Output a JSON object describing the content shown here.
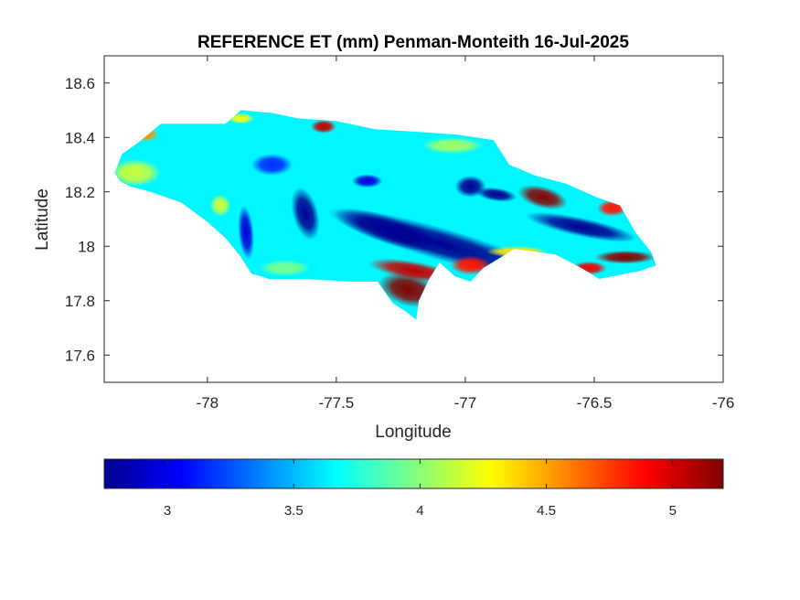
{
  "chart_data": {
    "type": "heatmap",
    "title": "REFERENCE ET (mm) Penman-Monteith 16-Jul-2025",
    "xlabel": "Longitude",
    "ylabel": "Latitude",
    "xlim": [
      -78.4,
      -76
    ],
    "ylim": [
      17.5,
      18.7
    ],
    "xticks": [
      -78,
      -77.5,
      -77,
      -76.5,
      -76
    ],
    "xtick_labels": [
      "-78",
      "-77.5",
      "-77",
      "-76.5",
      "-76"
    ],
    "yticks": [
      17.6,
      17.8,
      18,
      18.2,
      18.4,
      18.6
    ],
    "ytick_labels": [
      "17.6",
      "17.8",
      "18",
      "18.2",
      "18.4",
      "18.6"
    ],
    "colormap": "jet",
    "colorbar": {
      "location": "bottom",
      "range": [
        2.75,
        5.2
      ],
      "ticks": [
        3,
        3.5,
        4,
        4.5,
        5
      ],
      "tick_labels": [
        "3",
        "3.5",
        "4",
        "4.5",
        "5"
      ]
    },
    "region_outline": [
      [
        -78.36,
        18.27
      ],
      [
        -78.33,
        18.34
      ],
      [
        -78.27,
        18.38
      ],
      [
        -78.18,
        18.45
      ],
      [
        -78.07,
        18.45
      ],
      [
        -77.93,
        18.45
      ],
      [
        -77.87,
        18.5
      ],
      [
        -77.75,
        18.49
      ],
      [
        -77.65,
        18.47
      ],
      [
        -77.5,
        18.46
      ],
      [
        -77.35,
        18.43
      ],
      [
        -77.18,
        18.42
      ],
      [
        -77.03,
        18.41
      ],
      [
        -76.89,
        18.39
      ],
      [
        -76.83,
        18.3
      ],
      [
        -76.73,
        18.26
      ],
      [
        -76.61,
        18.23
      ],
      [
        -76.49,
        18.18
      ],
      [
        -76.4,
        18.15
      ],
      [
        -76.34,
        18.05
      ],
      [
        -76.28,
        17.98
      ],
      [
        -76.26,
        17.93
      ],
      [
        -76.32,
        17.91
      ],
      [
        -76.48,
        17.88
      ],
      [
        -76.55,
        17.92
      ],
      [
        -76.65,
        17.97
      ],
      [
        -76.81,
        17.99
      ],
      [
        -76.93,
        17.92
      ],
      [
        -76.98,
        17.87
      ],
      [
        -77.04,
        17.89
      ],
      [
        -77.1,
        17.94
      ],
      [
        -77.14,
        17.88
      ],
      [
        -77.18,
        17.8
      ],
      [
        -77.19,
        17.73
      ],
      [
        -77.23,
        17.76
      ],
      [
        -77.28,
        17.79
      ],
      [
        -77.34,
        17.87
      ],
      [
        -77.45,
        17.87
      ],
      [
        -77.62,
        17.88
      ],
      [
        -77.76,
        17.88
      ],
      [
        -77.83,
        17.9
      ],
      [
        -77.87,
        17.96
      ],
      [
        -77.93,
        18.03
      ],
      [
        -78.0,
        18.09
      ],
      [
        -78.1,
        18.16
      ],
      [
        -78.22,
        18.2
      ],
      [
        -78.3,
        18.22
      ],
      [
        -78.34,
        18.24
      ]
    ],
    "field_features": [
      {
        "lon": -77.1,
        "lat": 18.01,
        "rx": 0.45,
        "ry": 0.06,
        "value": -1.5,
        "rot": 16
      },
      {
        "lon": -76.55,
        "lat": 18.07,
        "rx": 0.22,
        "ry": 0.035,
        "value": -1.6,
        "rot": 12
      },
      {
        "lon": -77.3,
        "lat": 18.06,
        "rx": 0.22,
        "ry": 0.05,
        "value": -1.0,
        "rot": 18
      },
      {
        "lon": -77.62,
        "lat": 18.12,
        "rx": 0.05,
        "ry": 0.1,
        "value": -1.0,
        "rot": -15
      },
      {
        "lon": -77.85,
        "lat": 18.05,
        "rx": 0.03,
        "ry": 0.1,
        "value": -0.7,
        "rot": -5
      },
      {
        "lon": -76.98,
        "lat": 18.22,
        "rx": 0.06,
        "ry": 0.04,
        "value": -1.2,
        "rot": 0
      },
      {
        "lon": -76.88,
        "lat": 18.19,
        "rx": 0.08,
        "ry": 0.025,
        "value": -1.0,
        "rot": 8
      },
      {
        "lon": -77.38,
        "lat": 18.24,
        "rx": 0.06,
        "ry": 0.025,
        "value": -0.7,
        "rot": 0
      },
      {
        "lon": -77.75,
        "lat": 18.3,
        "rx": 0.08,
        "ry": 0.04,
        "value": -0.5,
        "rot": 0
      },
      {
        "lon": -77.22,
        "lat": 17.84,
        "rx": 0.12,
        "ry": 0.06,
        "value": 2.1,
        "rot": 15
      },
      {
        "lon": -77.2,
        "lat": 17.91,
        "rx": 0.18,
        "ry": 0.035,
        "value": 1.4,
        "rot": 10
      },
      {
        "lon": -76.98,
        "lat": 17.93,
        "rx": 0.08,
        "ry": 0.035,
        "value": 1.2,
        "rot": 0
      },
      {
        "lon": -76.7,
        "lat": 18.18,
        "rx": 0.1,
        "ry": 0.04,
        "value": 1.6,
        "rot": 15
      },
      {
        "lon": -76.43,
        "lat": 18.14,
        "rx": 0.06,
        "ry": 0.03,
        "value": 1.2,
        "rot": 0
      },
      {
        "lon": -76.38,
        "lat": 17.96,
        "rx": 0.12,
        "ry": 0.025,
        "value": 1.6,
        "rot": 0
      },
      {
        "lon": -76.52,
        "lat": 17.92,
        "rx": 0.07,
        "ry": 0.025,
        "value": 1.3,
        "rot": 0
      },
      {
        "lon": -77.55,
        "lat": 18.44,
        "rx": 0.05,
        "ry": 0.025,
        "value": 1.4,
        "rot": 0
      },
      {
        "lon": -78.24,
        "lat": 18.41,
        "rx": 0.05,
        "ry": 0.025,
        "value": 0.9,
        "rot": 0
      },
      {
        "lon": -77.87,
        "lat": 18.47,
        "rx": 0.05,
        "ry": 0.02,
        "value": 0.6,
        "rot": 0
      },
      {
        "lon": -78.28,
        "lat": 18.27,
        "rx": 0.1,
        "ry": 0.05,
        "value": 0.5,
        "rot": 0
      },
      {
        "lon": -77.95,
        "lat": 18.15,
        "rx": 0.04,
        "ry": 0.04,
        "value": 0.5,
        "rot": 0
      },
      {
        "lon": -77.05,
        "lat": 18.37,
        "rx": 0.12,
        "ry": 0.03,
        "value": 0.4,
        "rot": 0
      },
      {
        "lon": -76.8,
        "lat": 17.98,
        "rx": 0.12,
        "ry": 0.02,
        "value": 0.7,
        "rot": 0
      },
      {
        "lon": -77.7,
        "lat": 17.92,
        "rx": 0.1,
        "ry": 0.03,
        "value": 0.3,
        "rot": 0
      }
    ],
    "base_value": 3.65
  }
}
